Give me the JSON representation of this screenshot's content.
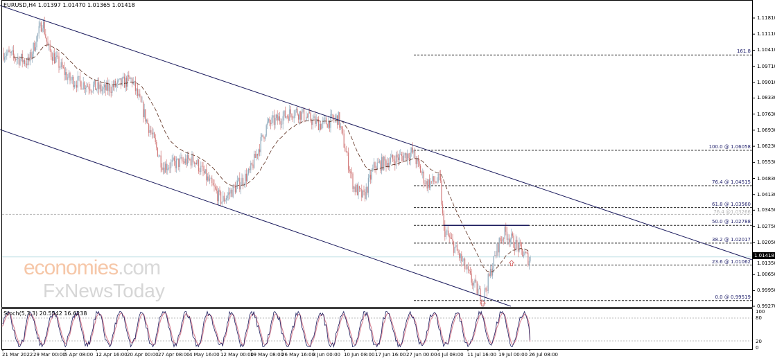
{
  "header": {
    "symbol": "EURUSD,H4 1.01397 1.01470 1.01365 1.01418"
  },
  "watermark": {
    "line1": "economies",
    "line1_suffix": ".com",
    "line2": "FxNewsToday"
  },
  "colors": {
    "bear": "#d27b7b",
    "bull": "#8ea9bb",
    "channel": "#1c1c5e",
    "ma": "#5a2a1a",
    "fib": "#24246e",
    "stoch_main": "#1c1c5e",
    "stoch_signal": "#d98a9a",
    "current_price_line": "#bfe0e6"
  },
  "chart_data": {
    "type": "candlestick",
    "title": "EURUSD,H4",
    "ohlc_last": {
      "open": 1.01397,
      "high": 1.0147,
      "low": 1.01365,
      "close": 1.01418
    },
    "current_price": "1.01418",
    "ylim": [
      0.9927,
      1.1181
    ],
    "y_ticks": [
      "1.11810",
      "1.11110",
      "1.10410",
      "1.09710",
      "1.09010",
      "1.08330",
      "1.07630",
      "1.06930",
      "1.06230",
      "1.05530",
      "1.04830",
      "1.04130",
      "1.03450",
      "1.02750",
      "1.02050",
      "1.01350",
      "1.00650",
      "0.99950",
      "0.99270"
    ],
    "x_ticks": [
      "21 Mar 2022",
      "29 Mar 00:00",
      "5 Apr 08:00",
      "12 Apr 16:00",
      "20 Apr 00:00",
      "27 Apr 08:00",
      "4 May 16:00",
      "12 May 00:00",
      "19 May 08:00",
      "26 May 16:00",
      "3 Jun 00:00",
      "10 Jun 08:00",
      "17 Jun 16:00",
      "27 Jun 00:00",
      "4 Jul 08:00",
      "11 Jul 16:00",
      "19 Jul 00:00",
      "26 Jul 08:00"
    ],
    "price_path": [
      {
        "t": "2022-03-21 00:00",
        "p": 1.1033
      },
      {
        "t": "2022-03-28 00:00",
        "p": 1.0988
      },
      {
        "t": "2022-03-31 08:00",
        "p": 1.1169
      },
      {
        "t": "2022-04-01 16:00",
        "p": 1.1048
      },
      {
        "t": "2022-04-06 16:00",
        "p": 1.0913
      },
      {
        "t": "2022-04-14 20:00",
        "p": 1.0868
      },
      {
        "t": "2022-04-21 08:00",
        "p": 1.0913
      },
      {
        "t": "2022-04-28 16:00",
        "p": 1.0536
      },
      {
        "t": "2022-05-06 00:00",
        "p": 1.0566
      },
      {
        "t": "2022-05-12 12:00",
        "p": 1.0385
      },
      {
        "t": "2022-05-19 08:00",
        "p": 1.0506
      },
      {
        "t": "2022-05-23 12:00",
        "p": 1.0717
      },
      {
        "t": "2022-05-30 00:00",
        "p": 1.0777
      },
      {
        "t": "2022-06-05 00:00",
        "p": 1.0717
      },
      {
        "t": "2022-06-09 04:00",
        "p": 1.0747
      },
      {
        "t": "2022-06-12 20:00",
        "p": 1.0446
      },
      {
        "t": "2022-06-15 04:00",
        "p": 1.04
      },
      {
        "t": "2022-06-17 16:00",
        "p": 1.0536
      },
      {
        "t": "2022-06-28 16:00",
        "p": 1.0596
      },
      {
        "t": "2022-07-01 20:00",
        "p": 1.0461
      },
      {
        "t": "2022-07-05 04:00",
        "p": 1.0476
      },
      {
        "t": "2022-07-06 00:00",
        "p": 1.0265
      },
      {
        "t": "2022-07-09 12:00",
        "p": 1.0159
      },
      {
        "t": "2022-07-12 20:00",
        "p": 1.0039
      },
      {
        "t": "2022-07-15 12:00",
        "p": 0.9957
      },
      {
        "t": "2022-07-19 08:00",
        "p": 1.0205
      },
      {
        "t": "2022-07-20 20:00",
        "p": 1.025
      },
      {
        "t": "2022-07-22 20:00",
        "p": 1.0205
      },
      {
        "t": "2022-07-26 12:00",
        "p": 1.0129
      },
      {
        "t": "2022-07-27 00:00",
        "p": 1.0142
      }
    ],
    "fibonacci": [
      {
        "label": "161.8",
        "price": 1.10201
      },
      {
        "label": "100.0 @ 1.06058",
        "price": 1.06058
      },
      {
        "label": "76.4 @ 1.04515",
        "price": 1.04515
      },
      {
        "label": "61.8 @ 1.03560",
        "price": 1.0356
      },
      {
        "label": "76.4 @1.03266",
        "price": 1.03266,
        "style": "gray"
      },
      {
        "label": "50.0 @ 1.02788",
        "price": 1.02788
      },
      {
        "label": "38.2 @ 1.02017",
        "price": 1.02017
      },
      {
        "label": "23.6 @ 1.01062",
        "price": 1.01062
      },
      {
        "label": "0.0 @ 0.99519",
        "price": 0.99519
      }
    ],
    "resistance_line": {
      "price": 1.02788,
      "from": "2022-07-06 00:00",
      "to": "2022-07-26 12:00"
    },
    "moving_average": {
      "style": "dashed"
    },
    "markers": [
      {
        "type": "up-arrow",
        "t": "2022-07-15 12:00",
        "p": 0.994
      },
      {
        "type": "up-arrow",
        "t": "2022-07-22 08:00",
        "p": 1.0115
      }
    ],
    "stochastic": {
      "label": "Stoch(5,3,3) 20.5542 16.6238",
      "main": 20.5542,
      "signal": 16.6238,
      "levels": [
        20,
        80
      ],
      "ylim": [
        0,
        100
      ],
      "axis_labels": [
        "100",
        "80",
        "20",
        "0"
      ]
    }
  }
}
